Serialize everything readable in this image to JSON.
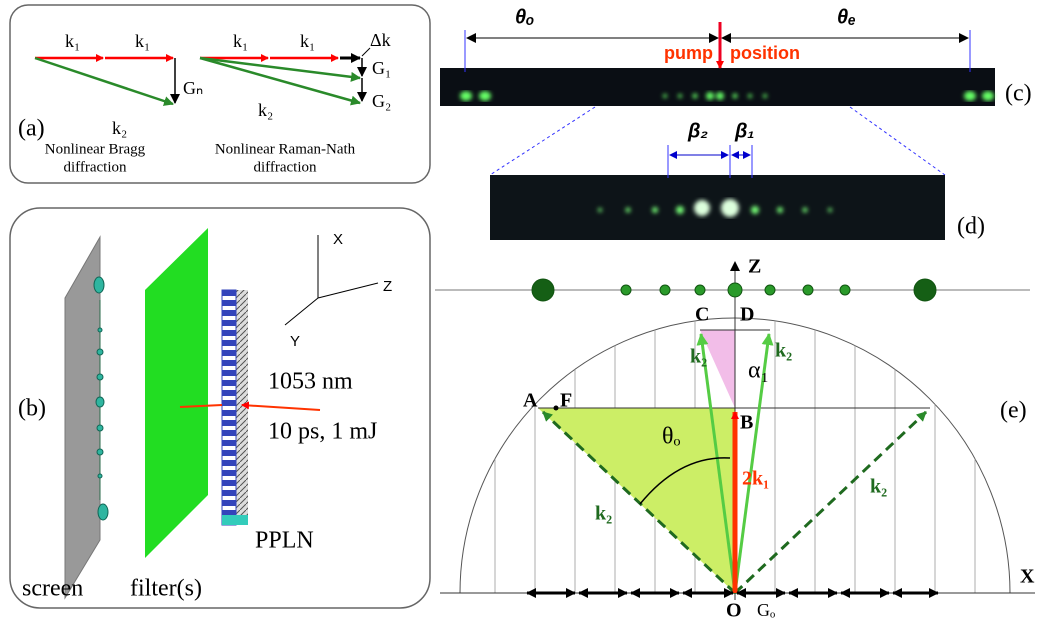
{
  "panel_a": {
    "label": "(a)",
    "bragg": {
      "k1": [
        "k₁",
        "k₁"
      ],
      "k2": "k₂",
      "g": "Gₙ",
      "caption": [
        "Nonlinear Bragg",
        "diffraction"
      ]
    },
    "raman_nath": {
      "k1": [
        "k₁",
        "k₁"
      ],
      "k2": "k₂",
      "delta_k": "Δk",
      "g": [
        "G₁",
        "G₂"
      ],
      "caption": [
        "Nonlinear Raman-Nath",
        "diffraction"
      ]
    }
  },
  "panel_b": {
    "label": "(b)",
    "axes": [
      "X",
      "Z",
      "Y"
    ],
    "laser": [
      "1053 nm",
      "10 ps, 1 mJ"
    ],
    "crystal": "PPLN",
    "screen": "screen",
    "filter": "filter(s)"
  },
  "panel_c": {
    "label": "(c)",
    "theta_o": "θₒ",
    "theta_e": "θₑ",
    "pump": "pump",
    "position": "position"
  },
  "panel_d": {
    "label": "(d)",
    "beta_2": "β₂",
    "beta_1": "β₁"
  },
  "panel_e": {
    "label": "(e)",
    "axis_z": "Z",
    "axis_x": "X",
    "points": [
      "C",
      "D",
      "A",
      "F",
      "B",
      "O"
    ],
    "k2": [
      "k₂",
      "k₂",
      "k₂",
      "k₂"
    ],
    "alpha_1": "α₁",
    "theta_o": "θₒ",
    "two_k1": "2k₁",
    "g_o": "Gₒ"
  }
}
